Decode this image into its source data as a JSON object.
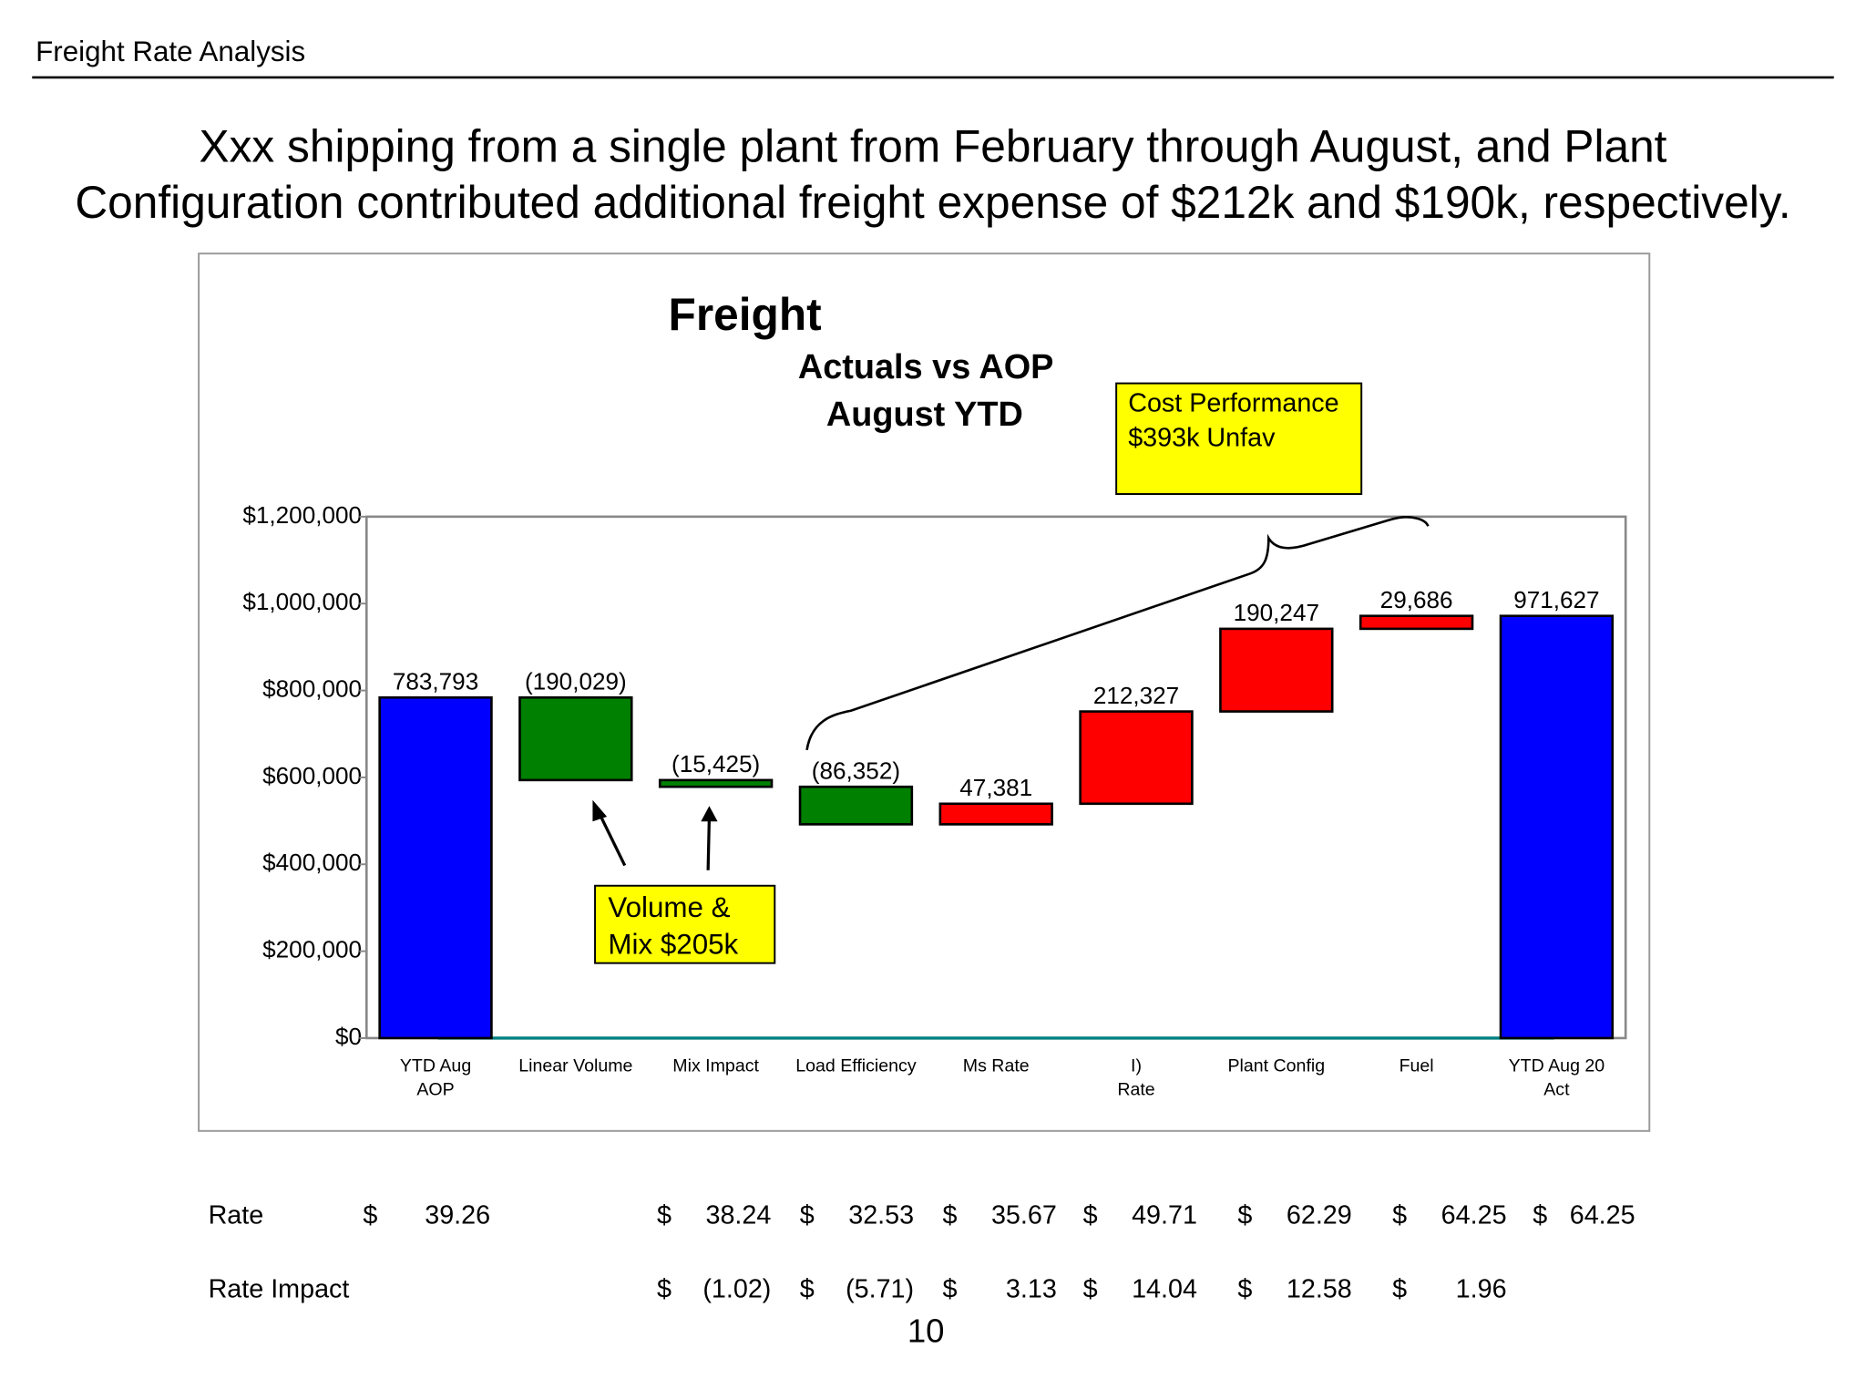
{
  "header": {
    "title": "Freight Rate Analysis",
    "headline": [
      "Xxx shipping from a single plant from February through August, and Plant",
      "Configuration contributed additional freight expense of $212k and $190k, respectively."
    ]
  },
  "chart_data": {
    "type": "waterfall",
    "title": "Freight",
    "subtitle": [
      "Actuals vs AOP",
      "August YTD"
    ],
    "categories": [
      [
        "YTD Aug",
        "AOP"
      ],
      [
        "Linear Volume"
      ],
      [
        "Mix Impact"
      ],
      [
        "Load Efficiency"
      ],
      [
        "Ms Rate"
      ],
      [
        "I)",
        "Rate"
      ],
      [
        "Plant Config"
      ],
      [
        "Fuel"
      ],
      [
        "YTD Aug 20",
        "Act"
      ]
    ],
    "values": [
      783793,
      -190029,
      -15425,
      -86352,
      47381,
      212327,
      190247,
      29686,
      971627
    ],
    "value_labels": [
      "783,793",
      "(190,029)",
      "(15,425)",
      "(86,352)",
      "47,381",
      "212,327",
      "190,247",
      "29,686",
      "971,627"
    ],
    "measure": [
      "total",
      "relative",
      "relative",
      "relative",
      "relative",
      "relative",
      "relative",
      "relative",
      "total"
    ],
    "colors": [
      "#0000ff",
      "#008000",
      "#008000",
      "#008000",
      "#ff0000",
      "#ff0000",
      "#ff0000",
      "#ff0000",
      "#0000ff"
    ],
    "ylim": [
      0,
      1200000
    ],
    "yticks": [
      {
        "value": 0,
        "label": "$0"
      },
      {
        "value": 200000,
        "label": "$200,000"
      },
      {
        "value": 400000,
        "label": "$400,000"
      },
      {
        "value": 600000,
        "label": "$600,000"
      },
      {
        "value": 800000,
        "label": "$800,000"
      },
      {
        "value": 1000000,
        "label": "$1,000,000"
      },
      {
        "value": 1200000,
        "label": "$1,200,000"
      }
    ],
    "grid": false,
    "annotations": [
      [
        "Cost Performance",
        "$393k Unfav"
      ],
      [
        "Volume &",
        "Mix $205k"
      ]
    ]
  },
  "rate_table": {
    "rows": [
      {
        "label": "Rate",
        "cells": [
          [
            "$",
            "39.26"
          ],
          [
            "$",
            "38.24"
          ],
          [
            "$",
            "32.53"
          ],
          [
            "$",
            "35.67"
          ],
          [
            "$",
            "49.71"
          ],
          [
            "$",
            "62.29"
          ],
          [
            "$",
            "64.25"
          ],
          [
            "$",
            "64.25"
          ]
        ]
      },
      {
        "label": "Rate Impact",
        "cells": [
          null,
          [
            "$",
            "(1.02)"
          ],
          [
            "$",
            "(5.71)"
          ],
          [
            "$",
            "3.13"
          ],
          [
            "$",
            "14.04"
          ],
          [
            "$",
            "12.58"
          ],
          [
            "$",
            "1.96"
          ],
          null
        ]
      }
    ]
  },
  "page_number": "10"
}
